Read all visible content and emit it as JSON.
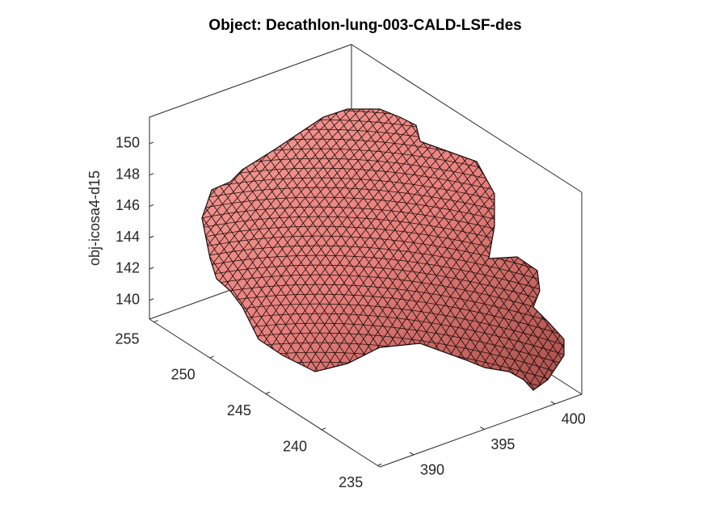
{
  "chart_data": {
    "type": "surface3d",
    "title": "Object: Decathlon-lung-003-CALD-LSF-des",
    "zlabel": "obj-icosa4-d15",
    "color": "#e8807c",
    "xlim": [
      387.6,
      401.9
    ],
    "xticks": [
      390,
      395,
      400
    ],
    "ylim": [
      234.8,
      255.4
    ],
    "yticks": [
      235,
      240,
      245,
      250,
      255
    ],
    "zlim": [
      138.8,
      151.7
    ],
    "zticks": [
      140,
      142,
      144,
      146,
      148,
      150
    ],
    "grid": false
  }
}
